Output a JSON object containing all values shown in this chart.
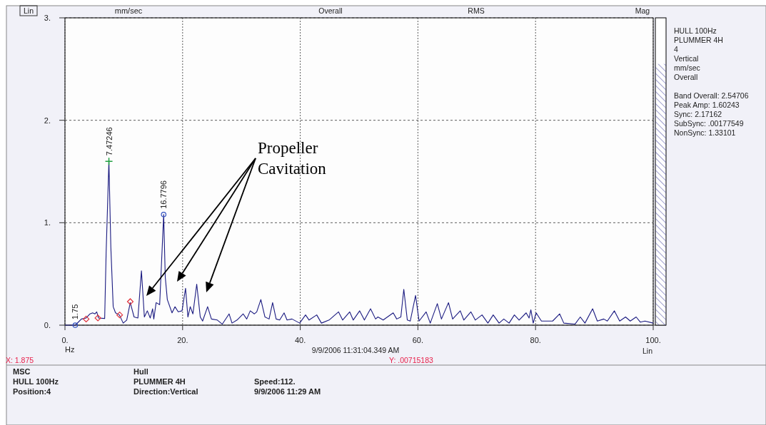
{
  "chart_data": {
    "type": "line",
    "xlabel": "Hz",
    "ylabel": "mm/sec",
    "xlim": [
      0,
      100
    ],
    "xticks": [
      {
        "value": 0,
        "label": "0."
      },
      {
        "value": 20,
        "label": "20."
      },
      {
        "value": 40,
        "label": "40."
      },
      {
        "value": 60,
        "label": "60."
      },
      {
        "value": 80,
        "label": "80."
      },
      {
        "value": 100,
        "label": "100."
      }
    ],
    "ylim": [
      0,
      3
    ],
    "yticks": [
      {
        "value": 0,
        "label": "0."
      },
      {
        "value": 1,
        "label": "1."
      },
      {
        "value": 2,
        "label": "2."
      },
      {
        "value": 3,
        "label": "3."
      }
    ],
    "grid": true,
    "line_style": "solid",
    "series": [
      {
        "color": "#1a1a80",
        "x": [
          0,
          1.75,
          2.8,
          3.6,
          4.25,
          4.7,
          5.1,
          5.4,
          5.7,
          6.75,
          7.0,
          7.47,
          7.8,
          8.2,
          8.6,
          9.25,
          9.9,
          10.5,
          11.1,
          11.75,
          12.4,
          13.0,
          13.5,
          14.0,
          14.5,
          14.9,
          15.1,
          15.5,
          16.1,
          16.78,
          17.05,
          17.4,
          18.2,
          18.7,
          19.25,
          19.9,
          20.5,
          20.9,
          21.3,
          21.75,
          22.4,
          23.0,
          23.4,
          24.25,
          24.9,
          25.9,
          26.75,
          27.9,
          28.4,
          29.25,
          30.3,
          30.9,
          31.5,
          32.2,
          32.6,
          33.3,
          34.0,
          34.7,
          35.3,
          35.9,
          36.5,
          37.25,
          37.75,
          38.6,
          39.9,
          40.9,
          41.5,
          42.8,
          43.6,
          44.9,
          46.5,
          47.2,
          48.4,
          49.0,
          50.1,
          50.9,
          51.95,
          52.8,
          53.2,
          54.1,
          55.8,
          56.4,
          57.1,
          57.6,
          58.2,
          58.7,
          59.6,
          60.2,
          61.4,
          62.1,
          63.3,
          64.0,
          65.2,
          65.9,
          67.2,
          67.8,
          69.0,
          69.75,
          70.9,
          71.9,
          72.8,
          73.8,
          74.6,
          75.5,
          76.4,
          77.2,
          78.4,
          78.9,
          79.2,
          79.6,
          80.1,
          81.0,
          82.9,
          84.1,
          84.8,
          86.7,
          87.6,
          88.4,
          89.7,
          90.5,
          91.6,
          92.2,
          93.4,
          94.3,
          95.3,
          96.1,
          97.1,
          97.8,
          98.6,
          100
        ],
        "values": [
          0,
          0,
          0.06,
          0.07,
          0.11,
          0.12,
          0.11,
          0.13,
          0.07,
          0.065,
          0.71,
          1.6,
          0.76,
          0.18,
          0.12,
          0.1,
          0.02,
          0.05,
          0.22,
          0.08,
          0.07,
          0.53,
          0.08,
          0.14,
          0.07,
          0.16,
          0.06,
          0.22,
          0.2,
          1.08,
          0.47,
          0.25,
          0.12,
          0.18,
          0.13,
          0.14,
          0.36,
          0.08,
          0.18,
          0.11,
          0.4,
          0.08,
          0.04,
          0.18,
          0.06,
          0.05,
          0.01,
          0.11,
          0.02,
          0.05,
          0.11,
          0.06,
          0.14,
          0.11,
          0.13,
          0.25,
          0.08,
          0.06,
          0.22,
          0.06,
          0.05,
          0.12,
          0.05,
          0.06,
          0.02,
          0.1,
          0.05,
          0.1,
          0.02,
          0.05,
          0.13,
          0.05,
          0.13,
          0.05,
          0.14,
          0.05,
          0.16,
          0.06,
          0.08,
          0.05,
          0.12,
          0.06,
          0.08,
          0.35,
          0.05,
          0.04,
          0.29,
          0.04,
          0.13,
          0.02,
          0.21,
          0.06,
          0.22,
          0.06,
          0.14,
          0.05,
          0.13,
          0.05,
          0.1,
          0.02,
          0.1,
          0.02,
          0.06,
          0.02,
          0.1,
          0.05,
          0.12,
          0.07,
          0.15,
          0.02,
          0.12,
          0.04,
          0.04,
          0.11,
          0.02,
          0.01,
          0.08,
          0.02,
          0.16,
          0.04,
          0.06,
          0.04,
          0.14,
          0.04,
          0.08,
          0.04,
          0.08,
          0.03,
          0.04,
          0.02
        ]
      },
      {
        "type": "scatter",
        "marker": "diamond",
        "color": "#e0303a",
        "x": [
          3.6,
          5.6,
          9.3,
          11.1
        ],
        "values": [
          0.06,
          0.07,
          0.1,
          0.23
        ]
      },
      {
        "type": "scatter",
        "marker": "circle",
        "color": "#3050c0",
        "x": [
          1.75,
          16.78
        ],
        "values": [
          0,
          1.08
        ]
      },
      {
        "type": "scatter",
        "marker": "cross",
        "color": "#20a040",
        "x": [
          7.47
        ],
        "values": [
          1.6
        ]
      }
    ],
    "annotations": [
      "Lin",
      "Overall",
      "RMS",
      "Mag",
      "Lin",
      "9/9/2006 11:31:04.349 AM",
      "X: 1.875",
      "Y: .00715183",
      "HULL 100Hz",
      "PLUMMER 4H",
      "4",
      "Vertical",
      "mm/sec",
      "Overall",
      "Band Overall:  2.54706",
      "Peak Amp:  1.60243",
      "Sync:  2.17162",
      "SubSync:  .00177549",
      "NonSync:  1.33101",
      "MSC",
      "HULL 100Hz",
      "Position:4",
      "Hull",
      "PLUMMER 4H",
      "Direction:Vertical",
      "Speed:112.",
      "9/9/2006 11:29 AM",
      {
        "text": "7.47246",
        "x": 7.47,
        "y": 1.6
      },
      {
        "text": "1.75",
        "x": 1.75,
        "y": 0
      },
      {
        "text": "16.7796",
        "x": 16.78,
        "y": 1.08
      },
      "Propeller Cavitation"
    ]
  }
}
